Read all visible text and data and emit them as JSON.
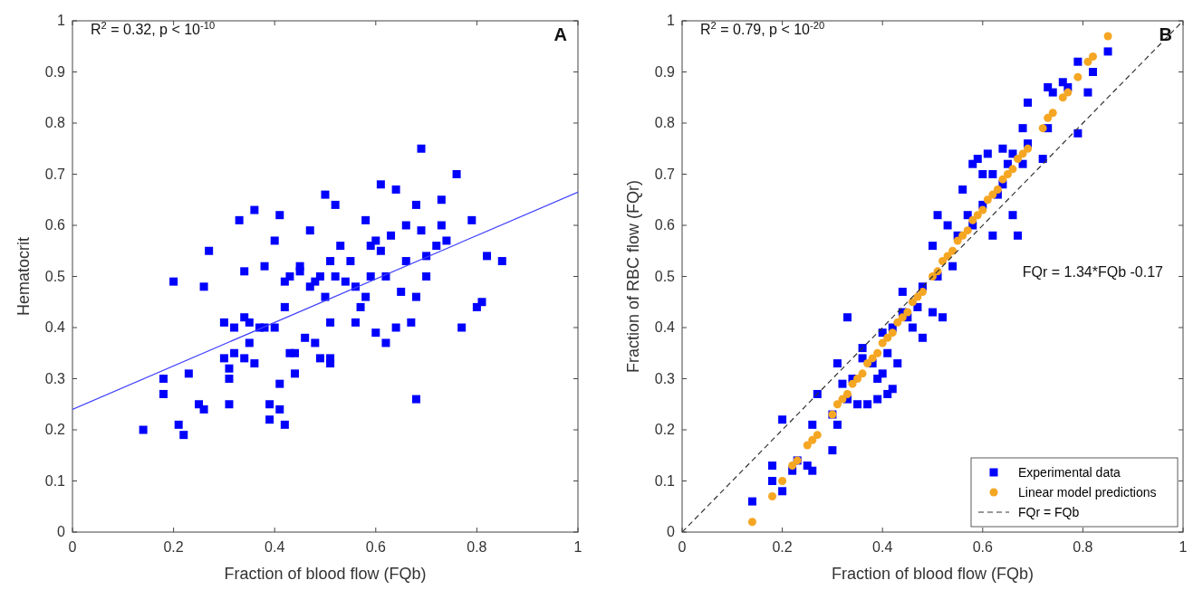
{
  "chart_data": [
    {
      "type": "scatter",
      "xlabel": "Fraction of blood flow (FQb)",
      "ylabel": "Hematocrit",
      "xlim": [
        0,
        1
      ],
      "ylim": [
        0,
        1
      ],
      "xticks": [
        0,
        0.2,
        0.4,
        0.6,
        0.8,
        1
      ],
      "yticks": [
        0,
        0.1,
        0.2,
        0.3,
        0.4,
        0.5,
        0.6,
        0.7,
        0.8,
        0.9,
        1
      ],
      "grid": false,
      "annotations": [
        "R$^{2}$ = 0.32, p < 10$^{-10}$",
        "A"
      ],
      "series": [
        {
          "type": "scatter",
          "marker": "square",
          "color": "#0000ff",
          "x": [
            0.14,
            0.18,
            0.18,
            0.2,
            0.21,
            0.22,
            0.23,
            0.25,
            0.26,
            0.26,
            0.27,
            0.3,
            0.3,
            0.31,
            0.31,
            0.31,
            0.32,
            0.32,
            0.33,
            0.34,
            0.34,
            0.34,
            0.35,
            0.35,
            0.36,
            0.36,
            0.37,
            0.38,
            0.38,
            0.39,
            0.39,
            0.4,
            0.4,
            0.41,
            0.41,
            0.41,
            0.42,
            0.42,
            0.42,
            0.43,
            0.43,
            0.44,
            0.44,
            0.45,
            0.45,
            0.46,
            0.47,
            0.47,
            0.48,
            0.48,
            0.49,
            0.49,
            0.5,
            0.5,
            0.51,
            0.51,
            0.51,
            0.51,
            0.52,
            0.52,
            0.53,
            0.54,
            0.55,
            0.56,
            0.56,
            0.57,
            0.58,
            0.58,
            0.59,
            0.59,
            0.6,
            0.6,
            0.61,
            0.61,
            0.62,
            0.62,
            0.63,
            0.64,
            0.64,
            0.65,
            0.66,
            0.66,
            0.67,
            0.68,
            0.68,
            0.68,
            0.69,
            0.69,
            0.7,
            0.7,
            0.72,
            0.73,
            0.73,
            0.74,
            0.76,
            0.77,
            0.79,
            0.8,
            0.81,
            0.82,
            0.85
          ],
          "values": [
            0.2,
            0.27,
            0.3,
            0.49,
            0.21,
            0.19,
            0.31,
            0.25,
            0.24,
            0.48,
            0.55,
            0.41,
            0.34,
            0.25,
            0.32,
            0.3,
            0.35,
            0.4,
            0.61,
            0.51,
            0.42,
            0.34,
            0.37,
            0.41,
            0.63,
            0.33,
            0.4,
            0.4,
            0.52,
            0.25,
            0.22,
            0.57,
            0.4,
            0.62,
            0.24,
            0.29,
            0.44,
            0.49,
            0.21,
            0.35,
            0.5,
            0.31,
            0.35,
            0.51,
            0.52,
            0.38,
            0.59,
            0.48,
            0.37,
            0.49,
            0.5,
            0.34,
            0.66,
            0.46,
            0.53,
            0.41,
            0.34,
            0.33,
            0.64,
            0.5,
            0.56,
            0.49,
            0.53,
            0.48,
            0.41,
            0.44,
            0.61,
            0.46,
            0.56,
            0.5,
            0.57,
            0.39,
            0.68,
            0.55,
            0.37,
            0.5,
            0.58,
            0.67,
            0.4,
            0.47,
            0.6,
            0.53,
            0.41,
            0.64,
            0.46,
            0.26,
            0.75,
            0.59,
            0.54,
            0.5,
            0.56,
            0.65,
            0.6,
            0.57,
            0.7,
            0.4,
            0.61,
            0.44,
            0.45,
            0.54,
            0.53
          ]
        },
        {
          "type": "line",
          "marker": "none",
          "line_style": "solid",
          "color": "#4040ff",
          "x": [
            0,
            1
          ],
          "values": [
            0.24,
            0.665
          ]
        }
      ]
    },
    {
      "type": "scatter",
      "xlabel": "Fraction of blood flow (FQb)",
      "ylabel": "Fraction of RBC flow (FQr)",
      "xlim": [
        0,
        1
      ],
      "ylim": [
        0,
        1
      ],
      "xticks": [
        0,
        0.2,
        0.4,
        0.6,
        0.8,
        1
      ],
      "yticks": [
        0,
        0.1,
        0.2,
        0.3,
        0.4,
        0.5,
        0.6,
        0.7,
        0.8,
        0.9,
        1
      ],
      "grid": false,
      "legend": "bottom right",
      "annotations": [
        "R$^{2}$ = 0.79, p < 10$^{-20}$",
        "B",
        "FQr = 1.34*FQb -0.17"
      ],
      "series": [
        {
          "type": "scatter",
          "name": "Experimental data",
          "marker": "square",
          "color": "#0000ff",
          "x": [
            0.14,
            0.18,
            0.18,
            0.2,
            0.2,
            0.22,
            0.23,
            0.25,
            0.26,
            0.26,
            0.27,
            0.3,
            0.3,
            0.31,
            0.31,
            0.32,
            0.33,
            0.33,
            0.34,
            0.35,
            0.36,
            0.36,
            0.37,
            0.38,
            0.39,
            0.39,
            0.4,
            0.4,
            0.41,
            0.41,
            0.42,
            0.42,
            0.43,
            0.44,
            0.44,
            0.45,
            0.46,
            0.47,
            0.48,
            0.48,
            0.5,
            0.5,
            0.51,
            0.51,
            0.52,
            0.53,
            0.54,
            0.55,
            0.56,
            0.57,
            0.58,
            0.58,
            0.59,
            0.6,
            0.6,
            0.61,
            0.62,
            0.62,
            0.63,
            0.64,
            0.64,
            0.65,
            0.66,
            0.66,
            0.67,
            0.68,
            0.68,
            0.69,
            0.69,
            0.72,
            0.73,
            0.73,
            0.74,
            0.76,
            0.77,
            0.79,
            0.79,
            0.81,
            0.82,
            0.85
          ],
          "values": [
            0.06,
            0.1,
            0.13,
            0.08,
            0.22,
            0.12,
            0.14,
            0.13,
            0.21,
            0.12,
            0.27,
            0.16,
            0.23,
            0.21,
            0.33,
            0.29,
            0.42,
            0.26,
            0.3,
            0.25,
            0.34,
            0.36,
            0.25,
            0.33,
            0.3,
            0.26,
            0.31,
            0.39,
            0.27,
            0.35,
            0.28,
            0.4,
            0.33,
            0.47,
            0.43,
            0.42,
            0.4,
            0.44,
            0.38,
            0.48,
            0.56,
            0.43,
            0.62,
            0.5,
            0.42,
            0.6,
            0.52,
            0.58,
            0.67,
            0.62,
            0.72,
            0.6,
            0.73,
            0.7,
            0.64,
            0.74,
            0.7,
            0.58,
            0.66,
            0.75,
            0.68,
            0.72,
            0.74,
            0.62,
            0.58,
            0.79,
            0.72,
            0.84,
            0.76,
            0.73,
            0.87,
            0.79,
            0.86,
            0.88,
            0.87,
            0.92,
            0.78,
            0.86,
            0.9,
            0.94
          ]
        },
        {
          "type": "scatter",
          "name": "Linear model predictions",
          "marker": "circle",
          "color": "#f5a623",
          "x": [
            0.14,
            0.18,
            0.2,
            0.22,
            0.23,
            0.25,
            0.26,
            0.27,
            0.3,
            0.31,
            0.32,
            0.33,
            0.34,
            0.35,
            0.36,
            0.37,
            0.38,
            0.39,
            0.4,
            0.41,
            0.42,
            0.43,
            0.44,
            0.45,
            0.46,
            0.47,
            0.48,
            0.5,
            0.51,
            0.52,
            0.53,
            0.54,
            0.55,
            0.56,
            0.57,
            0.58,
            0.59,
            0.6,
            0.61,
            0.62,
            0.63,
            0.64,
            0.65,
            0.66,
            0.67,
            0.68,
            0.69,
            0.72,
            0.73,
            0.74,
            0.76,
            0.77,
            0.79,
            0.81,
            0.82,
            0.85
          ],
          "values": [
            0.02,
            0.07,
            0.1,
            0.13,
            0.14,
            0.17,
            0.18,
            0.19,
            0.23,
            0.25,
            0.26,
            0.27,
            0.29,
            0.3,
            0.31,
            0.33,
            0.34,
            0.35,
            0.37,
            0.38,
            0.39,
            0.41,
            0.42,
            0.43,
            0.45,
            0.46,
            0.47,
            0.5,
            0.51,
            0.53,
            0.54,
            0.55,
            0.57,
            0.58,
            0.59,
            0.61,
            0.62,
            0.63,
            0.65,
            0.66,
            0.67,
            0.69,
            0.7,
            0.71,
            0.73,
            0.74,
            0.75,
            0.79,
            0.81,
            0.82,
            0.85,
            0.86,
            0.89,
            0.92,
            0.93,
            0.97
          ]
        },
        {
          "type": "line",
          "name": "FQr = FQb",
          "marker": "none",
          "line_style": "dashed",
          "color": "#333333",
          "x": [
            0,
            1
          ],
          "values": [
            0,
            1
          ]
        }
      ]
    }
  ]
}
